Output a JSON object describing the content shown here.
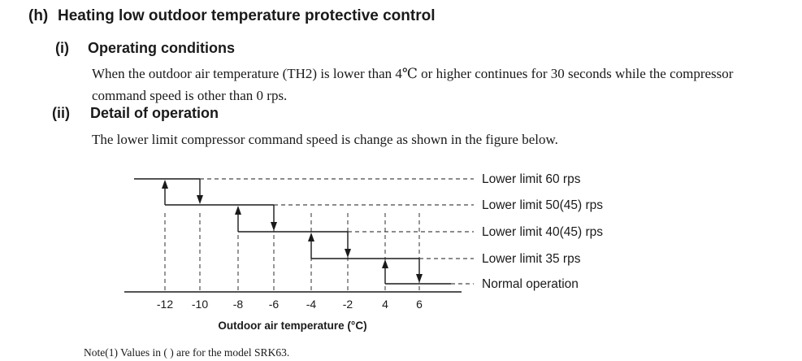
{
  "section": {
    "label": "(h)",
    "title": "Heating low outdoor temperature protective control"
  },
  "operating_conditions": {
    "label": "(i)",
    "title": "Operating conditions",
    "line1": "When the outdoor air temperature (TH2) is lower than 4℃ or higher continues for 30 seconds while the compressor",
    "line2": "command speed is other than 0 rps."
  },
  "detail_of_operation": {
    "label": "(ii)",
    "title": "Detail of operation",
    "text": "The lower limit compressor command speed is change as shown in the figure below."
  },
  "chart_data": {
    "type": "line",
    "xlabel": "Outdoor air temperature (°C)",
    "x_ticks": [
      "-12",
      "-10",
      "-8",
      "-6",
      "-4",
      "-2",
      "4",
      "6"
    ],
    "levels": [
      {
        "label": "Lower limit 60 rps",
        "rising_arrow_at": "-12",
        "falling_arrow_at": "-10"
      },
      {
        "label": "Lower limit 50(45) rps",
        "rising_arrow_at": "-8",
        "falling_arrow_at": "-6"
      },
      {
        "label": "Lower limit 40(45) rps",
        "rising_arrow_at": "-4",
        "falling_arrow_at": "-2"
      },
      {
        "label": "Lower limit 35 rps",
        "rising_arrow_at": "4",
        "falling_arrow_at": "6"
      },
      {
        "label": "Normal operation"
      }
    ]
  },
  "note": "Note(1)  Values in ( ) are for the model SRK63."
}
